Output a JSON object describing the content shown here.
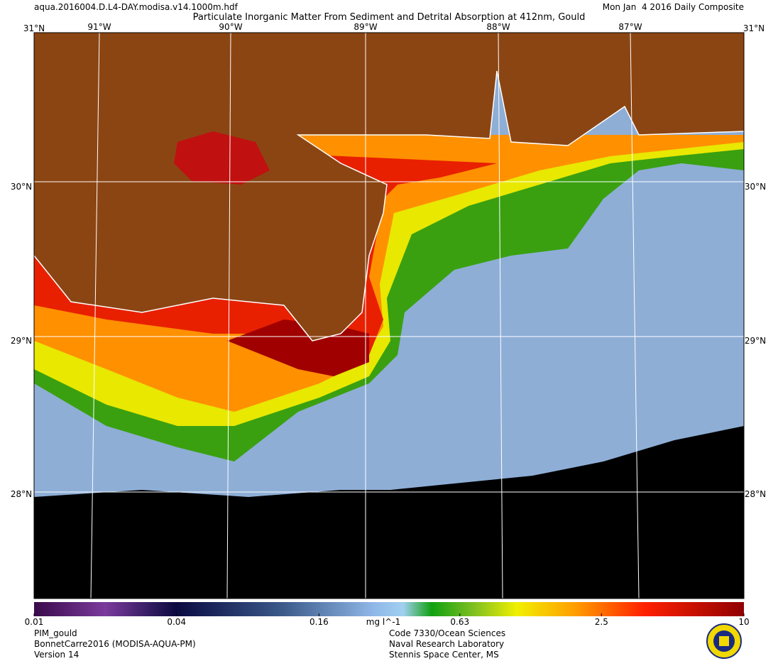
{
  "header": {
    "file": "aqua.2016004.D.L4-DAY.modisa.v14.1000m.hdf",
    "title": "Particulate Inorganic Matter From Sediment and Detrital Absorption at 412nm, Gould",
    "date": "Mon Jan  4 2016 Daily Composite"
  },
  "map": {
    "latitudes": [
      "31°N",
      "30°N",
      "29°N",
      "28°N"
    ],
    "longitudes": [
      "91°W",
      "90°W",
      "89°W",
      "88°W",
      "87°W"
    ]
  },
  "colorbar": {
    "range": [
      0.01,
      10
    ],
    "log": true,
    "ticks": [
      0.01,
      0.04,
      0.16,
      0.63,
      2.5,
      10
    ],
    "unit": "mg l^-1"
  },
  "footer": {
    "left": [
      "PIM_gould",
      "BonnetCarre2016 (MODISA-AQUA-PM)",
      "Version 14"
    ],
    "center": [
      "Code 7330/Ocean Sciences",
      "Naval Research Laboratory",
      "Stennis Space Center, MS"
    ]
  }
}
